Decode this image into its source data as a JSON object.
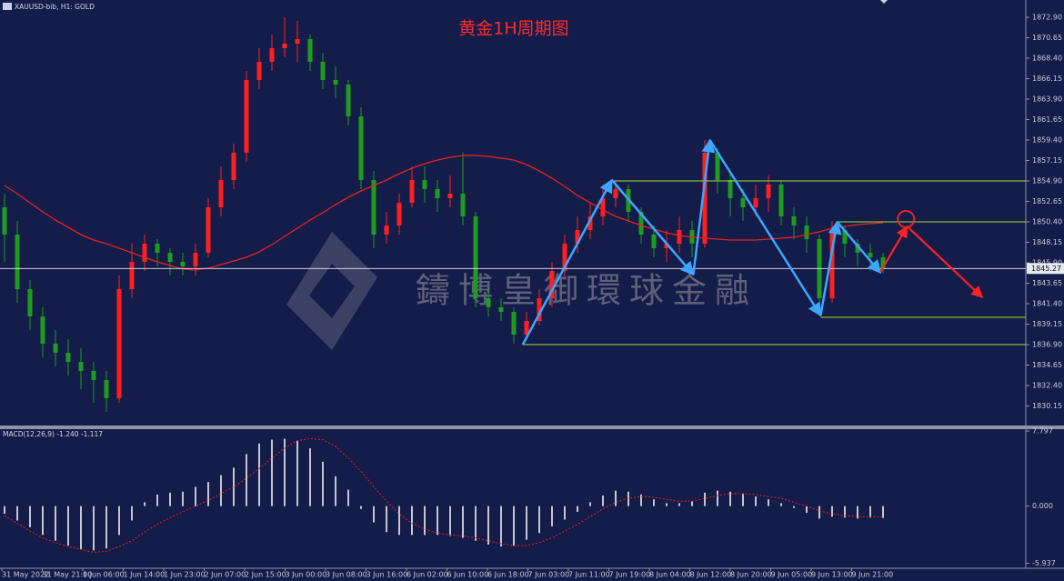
{
  "chart_data": [
    {
      "type": "candlestick",
      "title": "黄金1H周期图",
      "header": "XAUUSD-bib, H1:  GOLD",
      "watermark": "鑄博皇御環球金融",
      "up_color": "#ff1f1f",
      "down_color": "#1e9c1e",
      "open": [
        1852,
        1849,
        1843,
        1840,
        1837,
        1836,
        1835,
        1834,
        1833,
        1831,
        1843,
        1846,
        1848,
        1847,
        1846,
        1845.5,
        1847,
        1852,
        1855,
        1858,
        1866,
        1868,
        1869.5,
        1870,
        1870.5,
        1868,
        1866,
        1865.5,
        1862,
        1855,
        1849,
        1850,
        1852.5,
        1855,
        1854,
        1853,
        1853.5,
        1851,
        1842,
        1841,
        1840.5,
        1838,
        1839.5,
        1842,
        1845,
        1848,
        1849.5,
        1851,
        1853,
        1854,
        1851.5,
        1849,
        1847.5,
        1848,
        1849.5,
        1848,
        1858,
        1855,
        1853,
        1852,
        1853,
        1854.5,
        1851,
        1850,
        1848.5,
        1842,
        1849.5,
        1848,
        1847,
        1846.5
      ],
      "high": [
        1853.5,
        1850.5,
        1844,
        1841,
        1838.5,
        1837.5,
        1836.5,
        1835,
        1834,
        1844.5,
        1848,
        1849,
        1848.5,
        1847.5,
        1847,
        1848,
        1853,
        1856.5,
        1859,
        1867,
        1869.5,
        1871,
        1872.9,
        1872.5,
        1871,
        1869,
        1867.5,
        1866,
        1863,
        1856,
        1851.5,
        1853.5,
        1856.5,
        1856.5,
        1855,
        1855.5,
        1858,
        1851.5,
        1843,
        1842,
        1841,
        1840.5,
        1843,
        1846,
        1849,
        1851,
        1852.5,
        1854.5,
        1855,
        1854.5,
        1852,
        1850,
        1849.5,
        1851,
        1850.5,
        1859.4,
        1858.5,
        1856,
        1854,
        1854.5,
        1855.5,
        1855,
        1852,
        1851,
        1849,
        1850.5,
        1850,
        1848.5,
        1848,
        1847
      ],
      "low": [
        1846,
        1841.5,
        1838.5,
        1835.5,
        1834.5,
        1833.5,
        1832,
        1830.5,
        1829.5,
        1830.5,
        1842,
        1845,
        1845.5,
        1844.5,
        1844.5,
        1844.5,
        1846.5,
        1851,
        1854,
        1857,
        1865,
        1867,
        1868.5,
        1868,
        1867,
        1865,
        1864,
        1861,
        1854,
        1847.5,
        1848,
        1849,
        1852,
        1852.5,
        1851.5,
        1852,
        1850,
        1841,
        1840,
        1839.5,
        1837,
        1837.5,
        1839,
        1841,
        1844,
        1847,
        1848.5,
        1850,
        1852,
        1850.5,
        1848,
        1846.5,
        1846,
        1847,
        1846.5,
        1847.5,
        1853.5,
        1851,
        1850.5,
        1851,
        1851.5,
        1850,
        1848.5,
        1847,
        1841.5,
        1841.5,
        1846.5,
        1845.5,
        1845,
        1844.8
      ],
      "close": [
        1849,
        1843,
        1840,
        1837,
        1836,
        1835,
        1834,
        1833,
        1831,
        1843,
        1846,
        1848,
        1847,
        1846,
        1845.5,
        1847,
        1852,
        1855,
        1858,
        1866,
        1868,
        1869.5,
        1870,
        1870.5,
        1868,
        1866,
        1865.5,
        1862,
        1855,
        1849,
        1850,
        1852.5,
        1855,
        1854,
        1853,
        1853.5,
        1851,
        1842,
        1841,
        1840.5,
        1838,
        1839.5,
        1842,
        1845,
        1848,
        1849.5,
        1851,
        1853,
        1854,
        1851.5,
        1849,
        1847.5,
        1848,
        1849.5,
        1848,
        1858,
        1855,
        1853,
        1852,
        1853,
        1854.5,
        1851,
        1850,
        1848.5,
        1842,
        1849.5,
        1848,
        1847,
        1846.5,
        1845.27
      ],
      "ma": {
        "color": "#e8201c",
        "values": [
          1854.4,
          1853.5,
          1852.5,
          1851.5,
          1850.6,
          1849.8,
          1849.0,
          1848.4,
          1848.0,
          1847.5,
          1847.0,
          1846.5,
          1846.0,
          1845.6,
          1845.2,
          1845.1,
          1845.3,
          1845.7,
          1846.1,
          1846.5,
          1847.1,
          1847.9,
          1848.8,
          1849.7,
          1850.6,
          1851.4,
          1852.3,
          1853.1,
          1853.8,
          1854.4,
          1855.0,
          1855.7,
          1856.3,
          1856.8,
          1857.2,
          1857.5,
          1857.7,
          1857.7,
          1857.6,
          1857.4,
          1857.2,
          1856.7,
          1856.0,
          1855.2,
          1854.3,
          1853.3,
          1852.5,
          1851.7,
          1851.0,
          1850.5,
          1850.0,
          1849.6,
          1849.2,
          1848.9,
          1848.7,
          1848.6,
          1848.5,
          1848.4,
          1848.4,
          1848.4,
          1848.5,
          1848.6,
          1848.7,
          1849.0,
          1849.3,
          1849.7,
          1849.9,
          1850.1,
          1850.2,
          1850.3
        ]
      },
      "levels": {
        "color": "#9be03a",
        "x": [
          47.7,
          65.4,
          64.1,
          40.7
        ],
        "y": [
          1854.9,
          1850.4,
          1839.9,
          1836.9
        ]
      },
      "trend_lines": {
        "color": "#3ea6ff",
        "x": [
          40.7,
          47.7,
          54.1,
          55.4,
          64.1,
          65.4,
          68.8
        ],
        "y": [
          1836.9,
          1855.0,
          1844.6,
          1859.4,
          1840.1,
          1850.4,
          1844.8
        ]
      },
      "forecast": {
        "color": "#ff2222",
        "x": [
          68.8,
          70.9,
          76.8
        ],
        "y": [
          1844.9,
          1849.9,
          1842.1
        ]
      },
      "marker": {
        "x": 70.8,
        "y": 1850.7
      },
      "ylim": [
        1828.0,
        1874.8
      ],
      "yticks": [
        {
          "value": 1872.9,
          "label": "1872.90"
        },
        {
          "value": 1870.65,
          "label": "1870.65"
        },
        {
          "value": 1868.4,
          "label": "1868.40"
        },
        {
          "value": 1866.15,
          "label": "1866.15"
        },
        {
          "value": 1863.9,
          "label": "1863.90"
        },
        {
          "value": 1861.65,
          "label": "1861.65"
        },
        {
          "value": 1859.4,
          "label": "1859.40"
        },
        {
          "value": 1857.15,
          "label": "1857.15"
        },
        {
          "value": 1854.9,
          "label": "1854.90"
        },
        {
          "value": 1852.65,
          "label": "1852.65"
        },
        {
          "value": 1850.4,
          "label": "1850.40"
        },
        {
          "value": 1848.15,
          "label": "1848.15"
        },
        {
          "value": 1845.9,
          "label": "1845.90"
        },
        {
          "value": 1843.65,
          "label": "1843.65"
        },
        {
          "value": 1841.4,
          "label": "1841.40"
        },
        {
          "value": 1839.15,
          "label": "1839.15"
        },
        {
          "value": 1836.9,
          "label": "1836.90"
        },
        {
          "value": 1834.65,
          "label": "1834.65"
        },
        {
          "value": 1832.4,
          "label": "1832.40"
        },
        {
          "value": 1830.15,
          "label": "1830.15"
        }
      ],
      "categories": [
        "31 May 2022",
        "31 May 21:00",
        "1 Jun 06:00",
        "1 Jun 14:00",
        "1 Jun 23:00",
        "2 Jun 07:00",
        "2 Jun 15:00",
        "3 Jun 00:00",
        "3 Jun 08:00",
        "3 Jun 16:00",
        "6 Jun 02:00",
        "6 Jun 10:00",
        "6 Jun 18:00",
        "7 Jun 03:00",
        "7 Jun 11:00",
        "7 Jun 19:00",
        "8 Jun 04:00",
        "8 Jun 12:00",
        "8 Jun 20:00",
        "9 Jun 05:00",
        "9 Jun 13:00",
        "9 Jun 21:00"
      ]
    },
    {
      "type": "macd",
      "label": "MACD(12,26,9) -1.240 -1.117",
      "color": "#ffffff",
      "values": [
        -0.8,
        -1.5,
        -2.2,
        -3.0,
        -3.6,
        -4.1,
        -4.5,
        -4.6,
        -4.4,
        -3.0,
        -1.5,
        0.4,
        1.2,
        1.4,
        1.5,
        2.0,
        2.5,
        3.2,
        4.0,
        5.4,
        6.5,
        6.9,
        7.0,
        6.8,
        6.0,
        4.6,
        3.1,
        1.7,
        -0.3,
        -1.7,
        -2.7,
        -3.0,
        -3.0,
        -3.0,
        -3.0,
        -3.1,
        -3.3,
        -3.6,
        -4.0,
        -4.2,
        -4.1,
        -3.5,
        -2.8,
        -2.1,
        -1.4,
        -0.6,
        0.4,
        1.1,
        1.6,
        1.5,
        1.2,
        0.7,
        0.3,
        0.3,
        0.5,
        1.4,
        1.6,
        1.5,
        1.3,
        1.0,
        0.7,
        0.3,
        -0.2,
        -0.7,
        -1.3,
        -1.1,
        -1.2,
        -1.3,
        -1.2,
        -1.24
      ],
      "signal": {
        "color": "#e8201c",
        "values": [
          -1.0,
          -1.8,
          -2.6,
          -3.3,
          -3.8,
          -4.2,
          -4.5,
          -4.8,
          -4.7,
          -4.2,
          -3.6,
          -2.7,
          -1.9,
          -1.2,
          -0.6,
          0.0,
          0.6,
          1.3,
          2.0,
          2.9,
          3.9,
          5.0,
          6.0,
          6.8,
          7.0,
          6.9,
          6.2,
          5.0,
          3.6,
          2.0,
          0.5,
          -0.8,
          -1.8,
          -2.4,
          -2.8,
          -3.0,
          -3.1,
          -3.3,
          -3.6,
          -3.9,
          -4.1,
          -4.1,
          -3.8,
          -3.3,
          -2.6,
          -1.9,
          -1.1,
          -0.3,
          0.4,
          0.8,
          1.0,
          0.9,
          0.7,
          0.5,
          0.5,
          0.8,
          1.1,
          1.3,
          1.3,
          1.2,
          1.0,
          0.8,
          0.4,
          0.0,
          -0.5,
          -0.8,
          -1.0,
          -1.1,
          -1.1,
          -1.117
        ]
      },
      "ylim": [
        -6.46,
        7.99
      ],
      "yticks": [
        7.797,
        {
          "value": 0,
          "label": "0.000"
        },
        -5.937
      ]
    }
  ]
}
